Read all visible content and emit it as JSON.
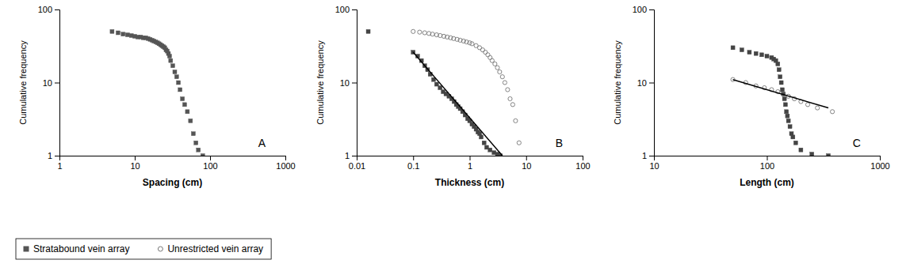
{
  "chart_data": [
    {
      "type": "scatter",
      "log": true,
      "legend": "lower left",
      "xlabel": "Spacing (cm)",
      "ylabel": "Cumulative frequency",
      "annotations": [
        "A"
      ],
      "xlim": [
        1,
        1000
      ],
      "ylim": [
        1,
        100
      ],
      "xticks": [
        1,
        10,
        100,
        1000
      ],
      "yticks": [
        1,
        10,
        100
      ],
      "series": [
        {
          "name": "Stratabound vein array",
          "type": "scatter",
          "marker": "square",
          "color": "#555555",
          "x": [
            5,
            6,
            7,
            8,
            9,
            10,
            11,
            12,
            13,
            14,
            15,
            16,
            17,
            18,
            19,
            20,
            21,
            22,
            23,
            24,
            25,
            26,
            27,
            28,
            29,
            30,
            32,
            34,
            36,
            38,
            40,
            43,
            46,
            50,
            55,
            60,
            65,
            70,
            80
          ],
          "values": [
            50,
            48,
            46,
            45,
            44,
            43,
            42,
            42,
            41,
            41,
            40,
            39,
            38,
            37,
            36,
            35,
            34,
            33,
            32,
            31,
            30,
            28,
            27,
            25,
            23,
            20,
            17,
            14,
            12,
            10,
            8,
            6,
            5,
            4,
            3,
            2,
            1.5,
            1.2,
            1
          ]
        }
      ]
    },
    {
      "type": "scatter",
      "log": true,
      "legend": "lower left",
      "xlabel": "Thickness (cm)",
      "ylabel": "Cumulative frequency",
      "annotations": [
        "B"
      ],
      "xlim": [
        0.01,
        100
      ],
      "ylim": [
        1,
        100
      ],
      "xticks": [
        0.01,
        0.1,
        1,
        10,
        100
      ],
      "yticks": [
        1,
        10,
        100
      ],
      "series": [
        {
          "name": "Stratabound vein array",
          "type": "scatter",
          "marker": "square",
          "color": "#444444",
          "x": [
            0.016,
            0.1,
            0.12,
            0.14,
            0.16,
            0.18,
            0.2,
            0.23,
            0.26,
            0.3,
            0.34,
            0.38,
            0.43,
            0.48,
            0.53,
            0.58,
            0.63,
            0.68,
            0.75,
            0.83,
            0.92,
            1.0,
            1.1,
            1.2,
            1.3,
            1.4,
            1.5,
            1.6,
            1.8,
            2.0,
            2.3,
            2.7,
            3.1,
            3.5
          ],
          "values": [
            50,
            26,
            23,
            20,
            17,
            15,
            13,
            11,
            9.5,
            8.5,
            7.5,
            7.0,
            6.5,
            6.0,
            5.5,
            5.0,
            4.7,
            4.4,
            4.0,
            3.6,
            3.2,
            3.0,
            2.7,
            2.5,
            2.3,
            2.1,
            2.0,
            1.8,
            1.5,
            1.3,
            1.2,
            1.1,
            1.05,
            1.0
          ]
        },
        {
          "name": "Unrestricted vein array",
          "type": "scatter",
          "marker": "circle",
          "color": "#777777",
          "x": [
            0.1,
            0.13,
            0.16,
            0.19,
            0.22,
            0.26,
            0.3,
            0.35,
            0.4,
            0.46,
            0.52,
            0.6,
            0.68,
            0.78,
            0.88,
            1.0,
            1.1,
            1.3,
            1.5,
            1.7,
            1.9,
            2.1,
            2.3,
            2.5,
            2.8,
            3.1,
            3.4,
            3.8,
            4.2,
            4.7,
            5.2,
            5.8,
            6.5,
            7.5
          ],
          "values": [
            50,
            49,
            48,
            47,
            46,
            45,
            44,
            43,
            42,
            41,
            40,
            39,
            38,
            37,
            36,
            35,
            34,
            32,
            30,
            28,
            26,
            24,
            22,
            20,
            18,
            16,
            14,
            12,
            10,
            8,
            6,
            5,
            3,
            1.5
          ]
        },
        {
          "type": "line",
          "line_style": "solid",
          "color": "black",
          "x": [
            0.1,
            3.8
          ],
          "values": [
            26,
            1.0
          ]
        }
      ]
    },
    {
      "type": "scatter",
      "log": true,
      "legend": "lower left",
      "xlabel": "Length (cm)",
      "ylabel": "Cumulative frequency",
      "annotations": [
        "C"
      ],
      "xlim": [
        10,
        1000
      ],
      "ylim": [
        1,
        100
      ],
      "xticks": [
        10,
        100,
        1000
      ],
      "yticks": [
        1,
        10,
        100
      ],
      "series": [
        {
          "name": "Stratabound vein array",
          "type": "scatter",
          "marker": "square",
          "color": "#444444",
          "x": [
            50,
            60,
            70,
            80,
            90,
            100,
            110,
            115,
            120,
            125,
            128,
            131,
            134,
            137,
            140,
            143,
            146,
            149,
            152,
            155,
            160,
            165,
            170,
            180,
            200,
            250,
            350
          ],
          "values": [
            30,
            28,
            26,
            25,
            24,
            23,
            22,
            21,
            20,
            18,
            15,
            12,
            10,
            8,
            7,
            6,
            5,
            4,
            3.5,
            3,
            2.5,
            2,
            1.8,
            1.5,
            1.2,
            1.05,
            1.0
          ]
        },
        {
          "name": "Unrestricted vein array",
          "type": "scatter",
          "marker": "circle",
          "color": "#777777",
          "x": [
            50,
            65,
            80,
            95,
            110,
            125,
            140,
            155,
            175,
            200,
            230,
            280,
            380
          ],
          "values": [
            11,
            10,
            9,
            8.5,
            8,
            7.5,
            7,
            6.5,
            6,
            5.5,
            5,
            4.5,
            4.0
          ]
        },
        {
          "type": "line",
          "line_style": "solid",
          "color": "black",
          "x": [
            50,
            350
          ],
          "values": [
            11,
            4.5
          ]
        }
      ]
    }
  ]
}
